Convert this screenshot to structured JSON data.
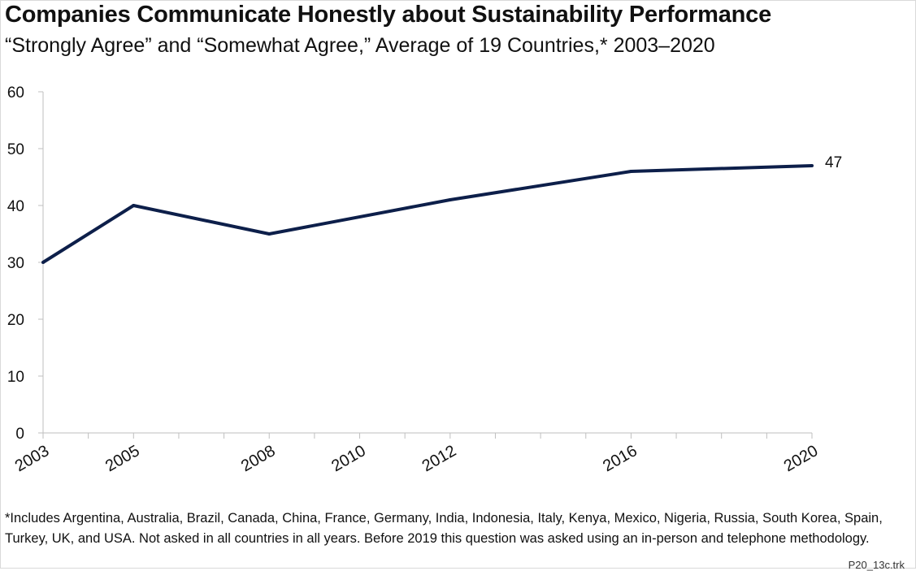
{
  "title": "Companies Communicate Honestly about Sustainability Performance",
  "subtitle": "“Strongly Agree” and “Somewhat Agree,” Average of 19 Countries,* 2003–2020",
  "footnote": "*Includes Argentina, Australia, Brazil, Canada, China, France, Germany, India, Indonesia, Italy, Kenya, Mexico, Nigeria, Russia, South Korea, Spain, Turkey, UK, and USA. Not asked in all countries in all years. Before 2019 this question was asked using an in-person and telephone methodology.",
  "source_code": "P20_13c.trk",
  "colors": {
    "line": "#0d1f4a",
    "axis": "#bfbfbf",
    "text": "#111111"
  },
  "chart_data": {
    "type": "line",
    "x": [
      2003,
      2005,
      2008,
      2012,
      2016,
      2020
    ],
    "x_tick_labels": [
      "2003",
      "2005",
      "2008",
      "2010",
      "2012",
      "2016",
      "2020"
    ],
    "x_tick_values": [
      2003,
      2005,
      2008,
      2010,
      2012,
      2016,
      2020
    ],
    "xlim": [
      2003,
      2020
    ],
    "series": [
      {
        "values": [
          30,
          40,
          35,
          41,
          46,
          47
        ],
        "end_label": "47"
      }
    ],
    "ylim": [
      0,
      60
    ],
    "y_ticks": [
      0,
      10,
      20,
      30,
      40,
      50,
      60
    ],
    "grid": false,
    "legend": "none"
  }
}
